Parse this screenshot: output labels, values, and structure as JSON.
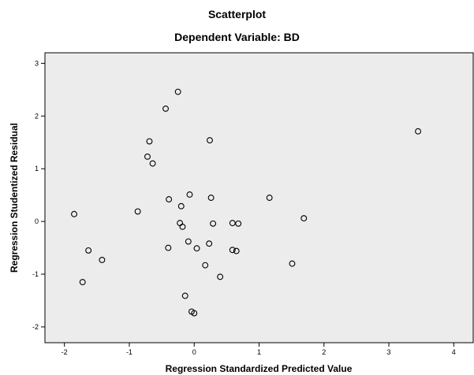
{
  "chart_data": {
    "type": "scatter",
    "title": "Scatterplot",
    "subtitle": "Dependent Variable: BD",
    "xlabel": "Regression Standardized Predicted Value",
    "ylabel": "Regression Studentized Residual",
    "xlim": [
      -2.3,
      4.3
    ],
    "ylim": [
      -2.3,
      3.2
    ],
    "xticks": [
      "-2",
      "-1",
      "0",
      "1",
      "2",
      "3",
      "4"
    ],
    "yticks": [
      "-2",
      "-1",
      "0",
      "1",
      "2",
      "3"
    ],
    "grid": false,
    "plot_background": "#ececec",
    "marker_color": "#000000",
    "points": [
      {
        "x": -0.25,
        "y": 2.46
      },
      {
        "x": -0.44,
        "y": 2.14
      },
      {
        "x": 0.24,
        "y": 1.54
      },
      {
        "x": -0.69,
        "y": 1.52
      },
      {
        "x": 3.45,
        "y": 1.71
      },
      {
        "x": -0.72,
        "y": 1.23
      },
      {
        "x": -0.64,
        "y": 1.1
      },
      {
        "x": -0.07,
        "y": 0.51
      },
      {
        "x": 0.26,
        "y": 0.45
      },
      {
        "x": 1.16,
        "y": 0.45
      },
      {
        "x": -0.39,
        "y": 0.42
      },
      {
        "x": -0.2,
        "y": 0.29
      },
      {
        "x": -0.87,
        "y": 0.19
      },
      {
        "x": -1.85,
        "y": 0.14
      },
      {
        "x": 1.69,
        "y": 0.06
      },
      {
        "x": -0.22,
        "y": -0.03
      },
      {
        "x": -0.18,
        "y": -0.1
      },
      {
        "x": 0.29,
        "y": -0.04
      },
      {
        "x": 0.59,
        "y": -0.03
      },
      {
        "x": 0.68,
        "y": -0.04
      },
      {
        "x": -0.09,
        "y": -0.38
      },
      {
        "x": 0.23,
        "y": -0.42
      },
      {
        "x": -0.4,
        "y": -0.5
      },
      {
        "x": 0.04,
        "y": -0.51
      },
      {
        "x": 0.59,
        "y": -0.54
      },
      {
        "x": 0.65,
        "y": -0.56
      },
      {
        "x": -1.63,
        "y": -0.55
      },
      {
        "x": -1.42,
        "y": -0.73
      },
      {
        "x": 0.17,
        "y": -0.83
      },
      {
        "x": 1.51,
        "y": -0.8
      },
      {
        "x": 0.4,
        "y": -1.05
      },
      {
        "x": -1.72,
        "y": -1.15
      },
      {
        "x": -0.14,
        "y": -1.41
      },
      {
        "x": -0.04,
        "y": -1.71
      },
      {
        "x": 0.0,
        "y": -1.74
      }
    ]
  }
}
